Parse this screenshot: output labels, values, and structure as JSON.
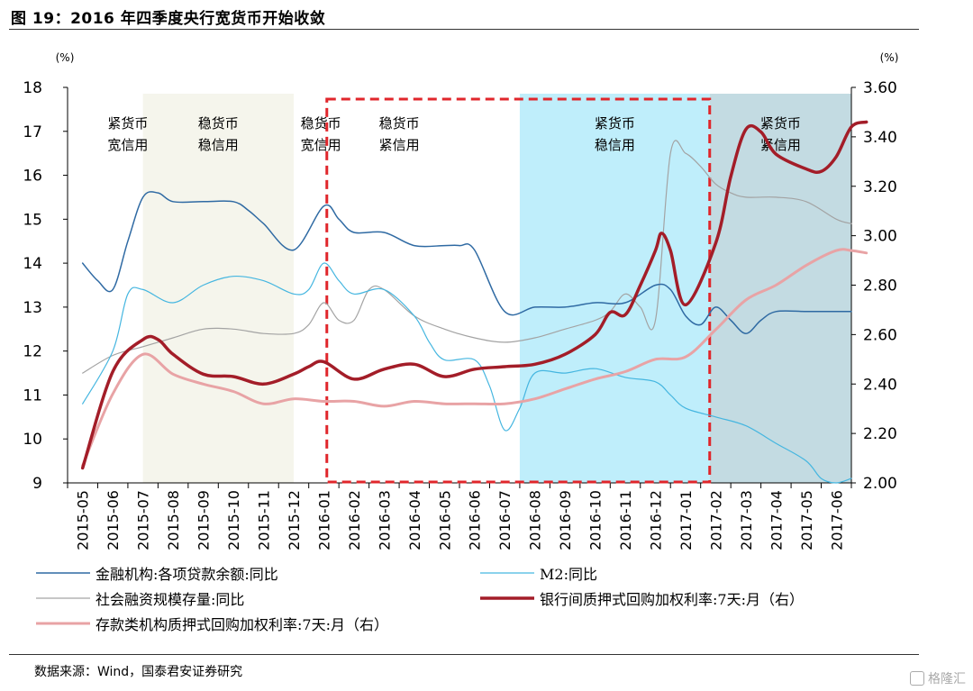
{
  "title": "图 19：2016 年四季度央行宽货币开始收敛",
  "source": "数据来源：Wind，国泰君安证券研究",
  "watermark": "格隆汇",
  "chart_data": {
    "type": "line",
    "left_axis": {
      "unit": "(%)",
      "ylim": [
        9,
        18
      ],
      "ticks": [
        9,
        10,
        11,
        12,
        13,
        14,
        15,
        16,
        17,
        18
      ]
    },
    "right_axis": {
      "unit": "(%)",
      "ylim": [
        2.0,
        3.6
      ],
      "ticks": [
        "2.00",
        "2.20",
        "2.40",
        "2.60",
        "2.80",
        "3.00",
        "3.20",
        "3.40",
        "3.60"
      ]
    },
    "categories": [
      "2015-05",
      "2015-06",
      "2015-07",
      "2015-08",
      "2015-09",
      "2015-10",
      "2015-11",
      "2015-12",
      "2016-01",
      "2016-02",
      "2016-03",
      "2016-04",
      "2016-05",
      "2016-06",
      "2016-07",
      "2016-08",
      "2016-09",
      "2016-10",
      "2016-11",
      "2016-12",
      "2017-01",
      "2017-02",
      "2017-03",
      "2017-04",
      "2017-05",
      "2017-06"
    ],
    "regions": [
      {
        "from": 2.5,
        "to": 7.5,
        "fill": "#f5f5ec",
        "label1": "稳货币",
        "label2": "稳信用"
      },
      {
        "from": 15.0,
        "to": 21.3,
        "fill": "#bfeefb",
        "label1": "紧货币",
        "label2": "稳信用"
      },
      {
        "from": 21.3,
        "to": 26.0,
        "fill": "#c3dbe2",
        "label1": "紧货币",
        "label2": "紧信用"
      }
    ],
    "region_labels": [
      {
        "x": 2.0,
        "label1": "紧货币",
        "label2": "宽信用"
      },
      {
        "x": 8.4,
        "label1": "稳货币",
        "label2": "宽信用"
      },
      {
        "x": 11.0,
        "label1": "稳货币",
        "label2": "紧信用"
      }
    ],
    "dashed_box": {
      "from": 8.6,
      "to": 21.3,
      "color": "#e0262b"
    },
    "series": [
      {
        "name": "金融机构:各项贷款余额:同比",
        "axis": "left",
        "color": "#2f6aa3",
        "width": 1.5,
        "x": [
          0,
          0.5,
          1,
          1.5,
          2,
          2.5,
          3,
          4,
          5,
          5.5,
          6,
          7,
          8,
          8.5,
          9,
          10,
          11,
          12,
          12.5,
          13,
          14,
          15,
          16,
          17,
          18,
          19,
          19.5,
          20,
          20.5,
          21,
          21.5,
          22,
          22.5,
          23,
          24,
          25,
          25.5
        ],
        "values": [
          14.0,
          13.6,
          13.4,
          14.5,
          15.5,
          15.6,
          15.4,
          15.4,
          15.4,
          15.2,
          14.9,
          14.3,
          15.3,
          15.0,
          14.7,
          14.7,
          14.4,
          14.4,
          14.4,
          14.3,
          12.9,
          13.0,
          13.0,
          13.1,
          13.1,
          13.5,
          13.4,
          12.8,
          12.6,
          13.0,
          12.7,
          12.4,
          12.7,
          12.9,
          12.9,
          12.9,
          12.9
        ]
      },
      {
        "name": "M2:同比",
        "axis": "left",
        "color": "#45b6e0",
        "width": 1.2,
        "x": [
          0,
          1,
          1.5,
          2,
          3,
          4,
          5,
          6,
          7,
          7.5,
          8,
          8.5,
          9,
          10,
          11,
          11.5,
          12,
          13,
          13.5,
          14,
          14.5,
          15,
          16,
          17,
          18,
          19,
          19.5,
          20,
          21,
          22,
          23,
          24,
          24.5,
          25,
          25.5
        ],
        "values": [
          10.8,
          12.0,
          13.3,
          13.4,
          13.1,
          13.5,
          13.7,
          13.6,
          13.3,
          13.4,
          14.0,
          13.6,
          13.3,
          13.4,
          12.8,
          12.2,
          11.8,
          11.8,
          11.2,
          10.2,
          10.7,
          11.5,
          11.5,
          11.6,
          11.4,
          11.3,
          11.0,
          10.7,
          10.5,
          10.3,
          9.9,
          9.5,
          9.1,
          9.0,
          9.1
        ]
      },
      {
        "name": "社会融资规模存量:同比",
        "axis": "left",
        "color": "#a3a3a3",
        "width": 1.2,
        "x": [
          0,
          1,
          2,
          3,
          4,
          5,
          6,
          7,
          7.5,
          8,
          8.5,
          9,
          9.5,
          10,
          11,
          12,
          13,
          14,
          15,
          16,
          17,
          17.5,
          18,
          18.5,
          19,
          19.5,
          20,
          20.5,
          21,
          21.5,
          22,
          23,
          24,
          25,
          25.5
        ],
        "values": [
          11.5,
          11.9,
          12.1,
          12.3,
          12.5,
          12.5,
          12.4,
          12.4,
          12.6,
          13.1,
          12.7,
          12.7,
          13.4,
          13.4,
          12.8,
          12.5,
          12.3,
          12.2,
          12.3,
          12.5,
          12.7,
          12.9,
          13.3,
          13.0,
          12.7,
          16.5,
          16.5,
          16.2,
          15.8,
          15.6,
          15.5,
          15.5,
          15.4,
          15.0,
          14.9
        ]
      },
      {
        "name": "银行间质押式回购加权利率:7天:月（右）",
        "axis": "right",
        "color": "#a31d28",
        "width": 3.5,
        "x": [
          0,
          1,
          2,
          2.5,
          3,
          4,
          5,
          6,
          7,
          7.5,
          8,
          9,
          10,
          11,
          12,
          13,
          14,
          15,
          16,
          17,
          17.5,
          18,
          18.5,
          19,
          19.2,
          19.5,
          20,
          21,
          21.5,
          22,
          22.5,
          23,
          24,
          24.5,
          25,
          25.5,
          26
        ],
        "values": [
          2.06,
          2.45,
          2.58,
          2.58,
          2.52,
          2.44,
          2.43,
          2.4,
          2.44,
          2.47,
          2.49,
          2.42,
          2.46,
          2.48,
          2.43,
          2.46,
          2.47,
          2.48,
          2.52,
          2.6,
          2.69,
          2.68,
          2.8,
          2.94,
          3.01,
          2.94,
          2.72,
          2.97,
          3.24,
          3.43,
          3.42,
          3.33,
          3.27,
          3.26,
          3.32,
          3.44,
          3.46
        ]
      },
      {
        "name": "存款类机构质押式回购加权利率:7天:月（右）",
        "axis": "right",
        "color": "#e8a3a5",
        "width": 3.0,
        "x": [
          0,
          1,
          2,
          3,
          4,
          5,
          6,
          7,
          8,
          9,
          10,
          11,
          12,
          13,
          14,
          15,
          16,
          17,
          18,
          19,
          20,
          21,
          22,
          23,
          24,
          25,
          25.5,
          26
        ],
        "values": [
          2.07,
          2.36,
          2.52,
          2.44,
          2.4,
          2.37,
          2.32,
          2.34,
          2.33,
          2.33,
          2.31,
          2.33,
          2.32,
          2.32,
          2.32,
          2.34,
          2.38,
          2.42,
          2.45,
          2.5,
          2.51,
          2.62,
          2.74,
          2.8,
          2.88,
          2.94,
          2.94,
          2.93
        ]
      }
    ]
  }
}
